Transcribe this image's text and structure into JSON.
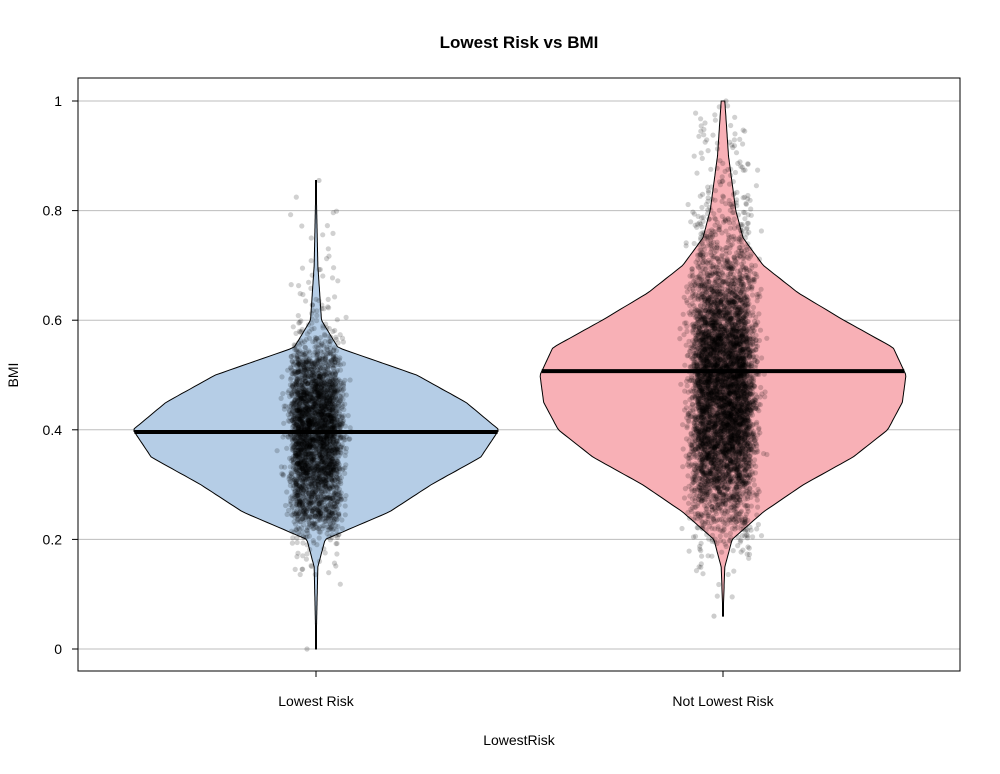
{
  "chart_data": {
    "type": "violin",
    "title": "Lowest Risk vs BMI",
    "xlabel": "LowestRisk",
    "ylabel": "BMI",
    "ylim": [
      -0.04,
      1.04
    ],
    "yticks": [
      "0",
      "0.2",
      "0.4",
      "0.6",
      "0.8",
      "1"
    ],
    "ytick_values": [
      0,
      0.2,
      0.4,
      0.6,
      0.8,
      1
    ],
    "grid": "horizontal",
    "categories": [
      "Lowest Risk",
      "Not Lowest Risk"
    ],
    "series": [
      {
        "category": "Lowest Risk",
        "color": "#B5CDE6",
        "median": 0.396,
        "min": 0.0,
        "max": 0.855,
        "density_profile": {
          "bmi": [
            0.0,
            0.15,
            0.2,
            0.25,
            0.3,
            0.35,
            0.4,
            0.45,
            0.5,
            0.55,
            0.6,
            0.7,
            0.855
          ],
          "density": [
            0.0,
            0.01,
            0.05,
            0.4,
            0.63,
            0.9,
            1.0,
            0.82,
            0.55,
            0.12,
            0.03,
            0.01,
            0.0
          ]
        }
      },
      {
        "category": "Not Lowest Risk",
        "color": "#F8B0B6",
        "median": 0.507,
        "min": 0.06,
        "max": 1.0,
        "density_profile": {
          "bmi": [
            0.06,
            0.15,
            0.2,
            0.25,
            0.3,
            0.35,
            0.4,
            0.45,
            0.5,
            0.55,
            0.6,
            0.65,
            0.7,
            0.75,
            0.8,
            0.9,
            1.0
          ],
          "density": [
            0.0,
            0.01,
            0.05,
            0.22,
            0.44,
            0.71,
            0.9,
            0.98,
            1.0,
            0.93,
            0.66,
            0.41,
            0.22,
            0.11,
            0.07,
            0.03,
            0.01
          ]
        }
      }
    ]
  }
}
